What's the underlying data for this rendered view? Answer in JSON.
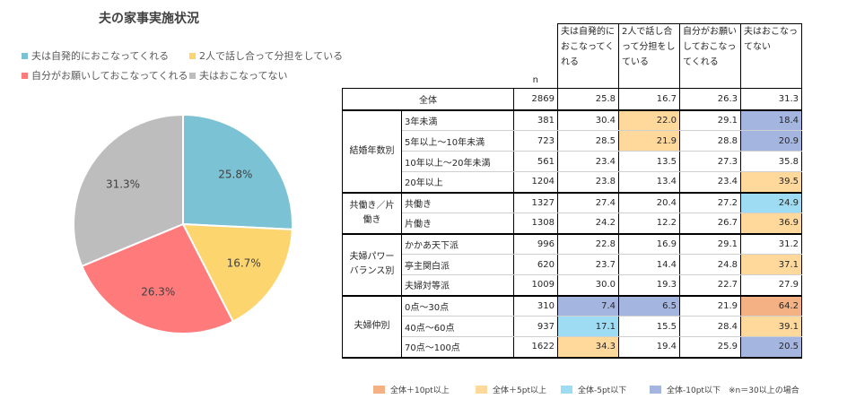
{
  "title": "夫の家事実施状況",
  "legend": [
    {
      "label": "夫は自発的におこなってくれる",
      "color": "#7BC3D4"
    },
    {
      "label": "2人で話し合って分担をしている",
      "color": "#FDD56E"
    },
    {
      "label": "自分がお願いしておこなってくれる",
      "color": "#FF7B7B"
    },
    {
      "label": "夫はおこなってない",
      "color": "#BDBDBD"
    }
  ],
  "chart_data": {
    "type": "pie",
    "title": "夫の家事実施状況",
    "labels": [
      "夫は自発的におこなってくれる",
      "2人で話し合って分担をしている",
      "自分がお願いしておこなってくれる",
      "夫はおこなってない"
    ],
    "values": [
      25.8,
      16.7,
      26.3,
      31.3
    ],
    "value_labels": [
      "25.8%",
      "16.7%",
      "26.3%",
      "31.3%"
    ],
    "colors": [
      "#7BC3D4",
      "#FDD56E",
      "#FF7B7B",
      "#BDBDBD"
    ]
  },
  "table": {
    "n_header": "n",
    "columns": [
      "夫は自発的におこなってくれる",
      "2人で話し合って分担をしている",
      "自分がお願いしておこなってくれる",
      "夫はおこなってない"
    ],
    "total": {
      "label": "全体",
      "n": "2869",
      "values": [
        "25.8",
        "16.7",
        "26.3",
        "31.3"
      ]
    },
    "groups": [
      {
        "name": "結婚年数別",
        "rows": [
          {
            "label": "3年未満",
            "n": "381",
            "values": [
              "30.4",
              "22.0",
              "29.1",
              "18.4"
            ],
            "hl": [
              "",
              "p5",
              "",
              "m10"
            ]
          },
          {
            "label": "5年以上～10年未満",
            "n": "723",
            "values": [
              "28.5",
              "21.9",
              "28.8",
              "20.9"
            ],
            "hl": [
              "",
              "p5",
              "",
              "m10"
            ]
          },
          {
            "label": "10年以上～20年未満",
            "n": "561",
            "values": [
              "23.4",
              "13.5",
              "27.3",
              "35.8"
            ],
            "hl": [
              "",
              "",
              "",
              ""
            ]
          },
          {
            "label": "20年以上",
            "n": "1204",
            "values": [
              "23.8",
              "13.4",
              "23.4",
              "39.5"
            ],
            "hl": [
              "",
              "",
              "",
              "p5"
            ]
          }
        ]
      },
      {
        "name": "共働き／片働き",
        "rows": [
          {
            "label": "共働き",
            "n": "1327",
            "values": [
              "27.4",
              "20.4",
              "27.2",
              "24.9"
            ],
            "hl": [
              "",
              "",
              "",
              "m5"
            ]
          },
          {
            "label": "片働き",
            "n": "1308",
            "values": [
              "24.2",
              "12.2",
              "26.7",
              "36.9"
            ],
            "hl": [
              "",
              "",
              "",
              "p5"
            ]
          }
        ]
      },
      {
        "name": "夫婦パワーバランス別",
        "rows": [
          {
            "label": "かかあ天下派",
            "n": "996",
            "values": [
              "22.8",
              "16.9",
              "29.1",
              "31.2"
            ],
            "hl": [
              "",
              "",
              "",
              ""
            ]
          },
          {
            "label": "亭主関白派",
            "n": "620",
            "values": [
              "23.7",
              "14.4",
              "24.8",
              "37.1"
            ],
            "hl": [
              "",
              "",
              "",
              "p5"
            ]
          },
          {
            "label": "夫婦対等派",
            "n": "1009",
            "values": [
              "30.0",
              "19.3",
              "22.7",
              "27.9"
            ],
            "hl": [
              "",
              "",
              "",
              ""
            ]
          }
        ]
      },
      {
        "name": "夫婦仲別",
        "rows": [
          {
            "label": "0点～30点",
            "n": "310",
            "values": [
              "7.4",
              "6.5",
              "21.9",
              "64.2"
            ],
            "hl": [
              "m10",
              "m10",
              "",
              "p10"
            ]
          },
          {
            "label": "40点～60点",
            "n": "937",
            "values": [
              "17.1",
              "15.5",
              "28.4",
              "39.1"
            ],
            "hl": [
              "m5",
              "",
              "",
              "p5"
            ]
          },
          {
            "label": "70点～100点",
            "n": "1622",
            "values": [
              "34.3",
              "19.4",
              "25.9",
              "20.5"
            ],
            "hl": [
              "p5",
              "",
              "",
              "m10"
            ]
          }
        ]
      }
    ]
  },
  "highlight_colors": {
    "p10": "#F4B183",
    "p5": "#FFD89B",
    "m5": "#9DDCF2",
    "m10": "#A4B6E0"
  },
  "footer_legend": [
    {
      "label": "全体＋10pt以上",
      "key": "p10"
    },
    {
      "label": "全体＋5pt以上",
      "key": "p5"
    },
    {
      "label": "全体-5pt以下",
      "key": "m5"
    },
    {
      "label": "全体-10pt以下",
      "key": "m10"
    }
  ],
  "footer_note": "※n＝30以上の場合"
}
